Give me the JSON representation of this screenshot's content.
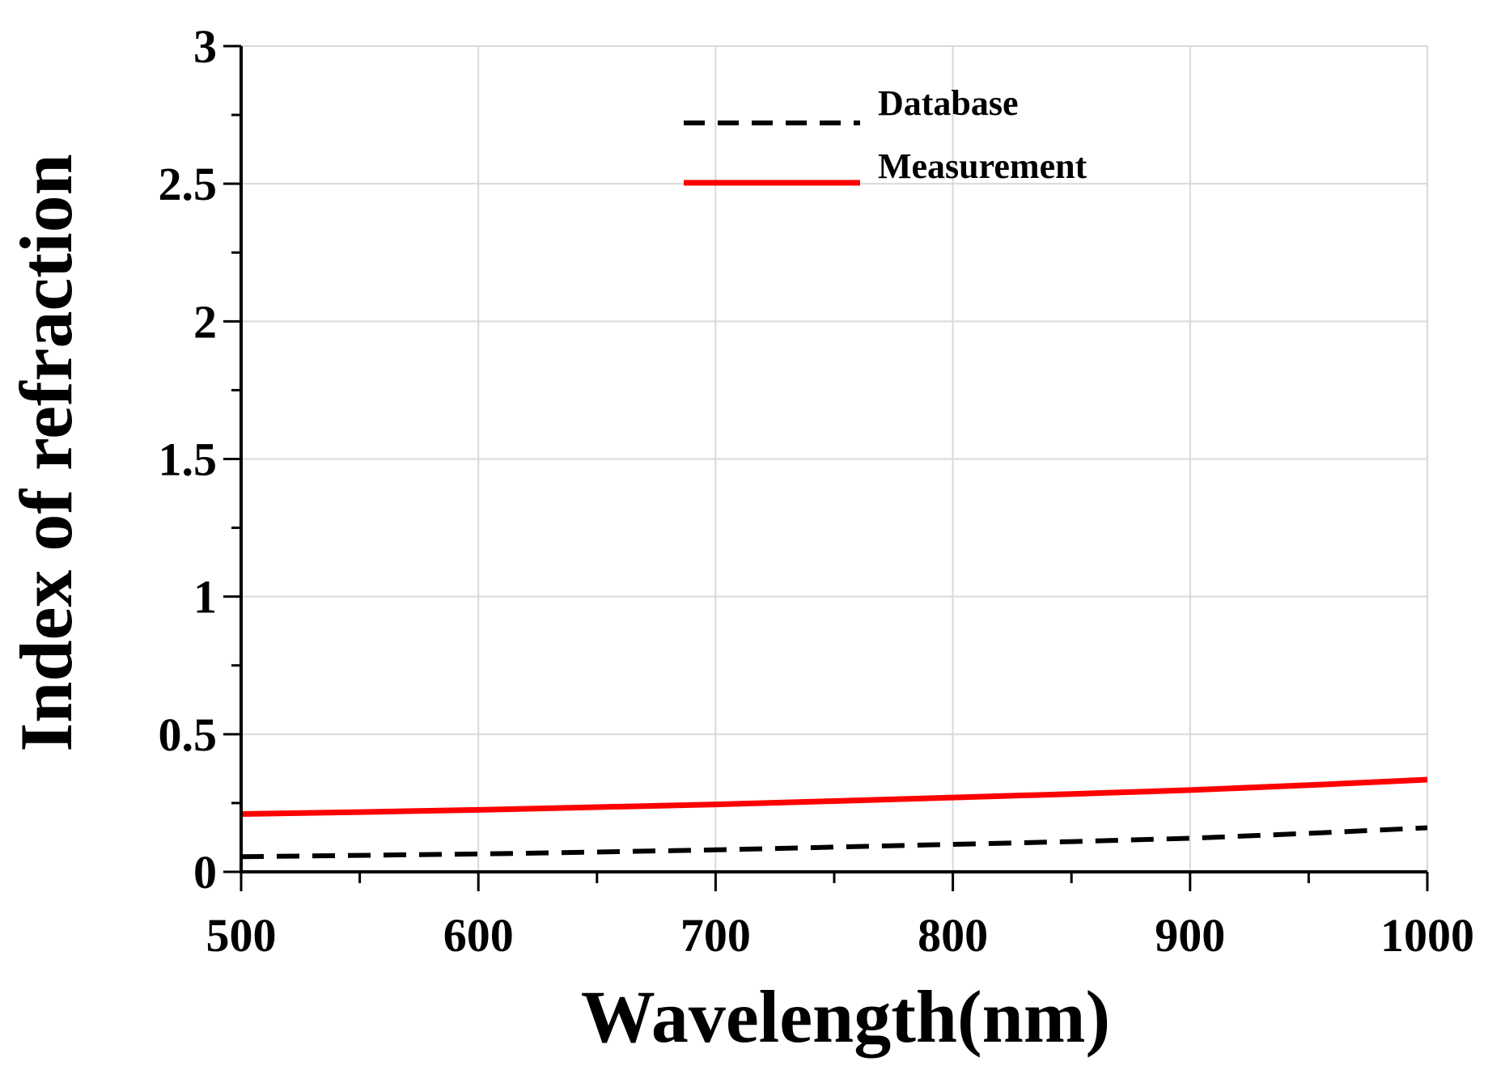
{
  "chart_data": {
    "type": "line",
    "title": "",
    "xlabel": "Wavelength(nm)",
    "ylabel": "Index of refraction",
    "xlim": [
      500,
      1000
    ],
    "ylim": [
      0,
      3
    ],
    "x_ticks": [
      500,
      600,
      700,
      800,
      900,
      1000
    ],
    "x_tick_labels": [
      "500",
      "600",
      "700",
      "800",
      "900",
      "1000"
    ],
    "x_minor_step": 50,
    "y_ticks": [
      0,
      0.5,
      1,
      1.5,
      2,
      2.5,
      3
    ],
    "y_tick_labels": [
      "0",
      "0.5",
      "1",
      "1.5",
      "2",
      "2.5",
      "3"
    ],
    "y_minor_step": 0.25,
    "grid": true,
    "legend_position": "top-center",
    "series": [
      {
        "name": "Database",
        "style": "dashed",
        "color": "#000000",
        "x": [
          500,
          550,
          600,
          650,
          700,
          750,
          800,
          850,
          900,
          950,
          1000
        ],
        "y": [
          0.055,
          0.06,
          0.065,
          0.072,
          0.08,
          0.09,
          0.1,
          0.11,
          0.122,
          0.14,
          0.16
        ]
      },
      {
        "name": "Measurement",
        "style": "solid",
        "color": "#ff0000",
        "x": [
          500,
          550,
          600,
          650,
          700,
          750,
          800,
          850,
          900,
          950,
          1000
        ],
        "y": [
          0.21,
          0.217,
          0.225,
          0.235,
          0.245,
          0.257,
          0.27,
          0.283,
          0.297,
          0.315,
          0.335
        ]
      }
    ]
  }
}
